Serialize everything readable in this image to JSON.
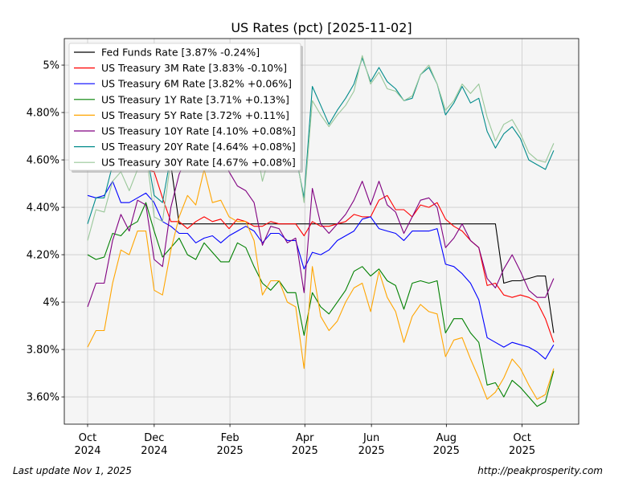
{
  "chart_data": {
    "type": "line",
    "title": "US Rates (pct) [2025-11-02]",
    "xlabel": "",
    "ylabel": "",
    "x_unit": "weekly observation index",
    "xlim": [
      -2.8,
      59.0
    ],
    "ylim": [
      3.485,
      5.112
    ],
    "grid": true,
    "legend_position": "upper-left",
    "xticks": [
      {
        "at": 0,
        "label": [
          "Oct",
          "2024"
        ]
      },
      {
        "at": 8.0,
        "label": [
          "Dec",
          "2024"
        ]
      },
      {
        "at": 17.1,
        "label": [
          "Feb",
          "2025"
        ]
      },
      {
        "at": 26.1,
        "label": [
          "Apr",
          "2025"
        ]
      },
      {
        "at": 34.1,
        "label": [
          "Jun",
          "2025"
        ]
      },
      {
        "at": 43.1,
        "label": [
          "Aug",
          "2025"
        ]
      },
      {
        "at": 52.2,
        "label": [
          "Oct",
          "2025"
        ]
      }
    ],
    "yticks": [
      {
        "at": 3.6,
        "label": "3.60%"
      },
      {
        "at": 3.8,
        "label": "3.80%"
      },
      {
        "at": 4.0,
        "label": "4%"
      },
      {
        "at": 4.2,
        "label": "4.20%"
      },
      {
        "at": 4.4,
        "label": "4.40%"
      },
      {
        "at": 4.6,
        "label": "4.60%"
      },
      {
        "at": 4.8,
        "label": "4.80%"
      },
      {
        "at": 5.0,
        "label": "5%"
      }
    ],
    "series": [
      {
        "name": "Fed Funds Rate [3.87% -0.24%]",
        "color": "#000000",
        "values": [
          4.83,
          4.83,
          4.83,
          4.83,
          4.83,
          4.83,
          4.58,
          4.58,
          4.58,
          4.58,
          4.58,
          4.33,
          4.33,
          4.33,
          4.33,
          4.33,
          4.33,
          4.33,
          4.33,
          4.33,
          4.33,
          4.33,
          4.33,
          4.33,
          4.33,
          4.33,
          4.33,
          4.33,
          4.33,
          4.33,
          4.33,
          4.33,
          4.33,
          4.33,
          4.33,
          4.33,
          4.33,
          4.33,
          4.33,
          4.33,
          4.33,
          4.33,
          4.33,
          4.33,
          4.33,
          4.33,
          4.33,
          4.33,
          4.33,
          4.33,
          4.08,
          4.09,
          4.09,
          4.1,
          4.11,
          4.11,
          3.87
        ]
      },
      {
        "name": "US Treasury 3M Rate [3.83% -0.10%]",
        "color": "#ff0000",
        "values": [
          4.72,
          4.7,
          4.66,
          4.63,
          4.6,
          4.58,
          4.57,
          4.56,
          4.55,
          4.44,
          4.34,
          4.34,
          4.31,
          4.34,
          4.36,
          4.34,
          4.35,
          4.31,
          4.35,
          4.34,
          4.32,
          4.32,
          4.34,
          4.33,
          4.33,
          4.33,
          4.28,
          4.34,
          4.32,
          4.32,
          4.33,
          4.34,
          4.37,
          4.36,
          4.36,
          4.43,
          4.45,
          4.39,
          4.39,
          4.36,
          4.41,
          4.4,
          4.42,
          4.35,
          4.32,
          4.3,
          4.26,
          4.23,
          4.07,
          4.08,
          4.03,
          4.02,
          4.03,
          4.02,
          4.0,
          3.93,
          3.83
        ]
      },
      {
        "name": "US Treasury 6M Rate [3.82% +0.06%]",
        "color": "#0000ff",
        "values": [
          4.45,
          4.44,
          4.45,
          4.51,
          4.42,
          4.42,
          4.44,
          4.46,
          4.42,
          4.34,
          4.32,
          4.29,
          4.29,
          4.25,
          4.27,
          4.28,
          4.25,
          4.28,
          4.3,
          4.32,
          4.3,
          4.25,
          4.29,
          4.29,
          4.26,
          4.26,
          4.14,
          4.21,
          4.2,
          4.22,
          4.26,
          4.28,
          4.3,
          4.35,
          4.36,
          4.31,
          4.3,
          4.29,
          4.26,
          4.3,
          4.3,
          4.3,
          4.31,
          4.16,
          4.15,
          4.12,
          4.08,
          4.01,
          3.85,
          3.83,
          3.81,
          3.83,
          3.82,
          3.81,
          3.79,
          3.76,
          3.82
        ]
      },
      {
        "name": "US Treasury 1Y Rate [3.71% +0.13%]",
        "color": "#008000",
        "values": [
          4.2,
          4.18,
          4.19,
          4.29,
          4.28,
          4.32,
          4.34,
          4.42,
          4.3,
          4.19,
          4.23,
          4.27,
          4.2,
          4.18,
          4.25,
          4.21,
          4.17,
          4.17,
          4.25,
          4.23,
          4.15,
          4.08,
          4.05,
          4.09,
          4.04,
          4.04,
          3.86,
          4.04,
          3.98,
          3.95,
          4.0,
          4.05,
          4.13,
          4.15,
          4.11,
          4.14,
          4.09,
          4.07,
          3.97,
          4.08,
          4.09,
          4.08,
          4.09,
          3.87,
          3.93,
          3.93,
          3.87,
          3.83,
          3.65,
          3.66,
          3.6,
          3.67,
          3.64,
          3.6,
          3.56,
          3.58,
          3.71
        ]
      },
      {
        "name": "US Treasury 5Y Rate [3.72% +0.11%]",
        "color": "#ffa500",
        "values": [
          3.81,
          3.88,
          3.88,
          4.08,
          4.22,
          4.2,
          4.3,
          4.3,
          4.05,
          4.03,
          4.22,
          4.36,
          4.45,
          4.41,
          4.56,
          4.42,
          4.43,
          4.36,
          4.34,
          4.34,
          4.26,
          4.03,
          4.09,
          4.09,
          4.0,
          3.98,
          3.72,
          4.15,
          3.94,
          3.88,
          3.92,
          4.0,
          4.06,
          4.08,
          3.96,
          4.13,
          4.02,
          3.96,
          3.83,
          3.94,
          3.99,
          3.96,
          3.95,
          3.77,
          3.84,
          3.85,
          3.76,
          3.68,
          3.59,
          3.62,
          3.68,
          3.76,
          3.72,
          3.65,
          3.59,
          3.61,
          3.72
        ]
      },
      {
        "name": "US Treasury 10Y Rate [4.10% +0.08%]",
        "color": "#800080",
        "values": [
          3.98,
          4.08,
          4.08,
          4.26,
          4.37,
          4.3,
          4.43,
          4.41,
          4.18,
          4.15,
          4.4,
          4.54,
          4.62,
          4.65,
          4.7,
          4.78,
          4.63,
          4.55,
          4.49,
          4.47,
          4.42,
          4.24,
          4.32,
          4.31,
          4.25,
          4.27,
          4.04,
          4.48,
          4.33,
          4.29,
          4.33,
          4.37,
          4.43,
          4.51,
          4.41,
          4.51,
          4.41,
          4.38,
          4.29,
          4.36,
          4.43,
          4.44,
          4.4,
          4.23,
          4.27,
          4.33,
          4.26,
          4.23,
          4.1,
          4.06,
          4.14,
          4.2,
          4.13,
          4.05,
          4.02,
          4.02,
          4.1
        ]
      },
      {
        "name": "US Treasury 20Y Rate [4.64% +0.08%]",
        "color": "#008b8b",
        "values": [
          4.33,
          4.44,
          4.44,
          4.58,
          4.62,
          4.68,
          4.72,
          4.65,
          4.45,
          4.42,
          4.62,
          4.86,
          4.92,
          4.98,
          4.9,
          4.85,
          4.8,
          4.78,
          4.83,
          4.75,
          4.68,
          4.6,
          4.62,
          4.65,
          4.68,
          4.62,
          4.44,
          4.91,
          4.83,
          4.75,
          4.81,
          4.86,
          4.92,
          5.03,
          4.93,
          4.99,
          4.93,
          4.9,
          4.85,
          4.86,
          4.96,
          4.99,
          4.92,
          4.79,
          4.84,
          4.91,
          4.84,
          4.86,
          4.72,
          4.65,
          4.71,
          4.74,
          4.69,
          4.6,
          4.58,
          4.56,
          4.64
        ]
      },
      {
        "name": "US Treasury 30Y Rate [4.67% +0.08%]",
        "color": "#99c799",
        "values": [
          4.26,
          4.39,
          4.38,
          4.51,
          4.55,
          4.47,
          4.56,
          4.64,
          4.36,
          4.34,
          4.6,
          4.88,
          4.94,
          4.99,
          4.92,
          4.87,
          4.82,
          4.8,
          4.85,
          4.77,
          4.7,
          4.51,
          4.64,
          4.67,
          4.7,
          4.64,
          4.42,
          4.85,
          4.79,
          4.74,
          4.79,
          4.83,
          4.89,
          5.04,
          4.92,
          4.97,
          4.9,
          4.89,
          4.85,
          4.87,
          4.96,
          5.0,
          4.92,
          4.81,
          4.85,
          4.92,
          4.88,
          4.92,
          4.78,
          4.68,
          4.75,
          4.77,
          4.71,
          4.63,
          4.6,
          4.59,
          4.67
        ]
      }
    ]
  },
  "footer": {
    "last_update": "Last update Nov  1, 2025",
    "source_url": "http://peakprosperity.com"
  }
}
